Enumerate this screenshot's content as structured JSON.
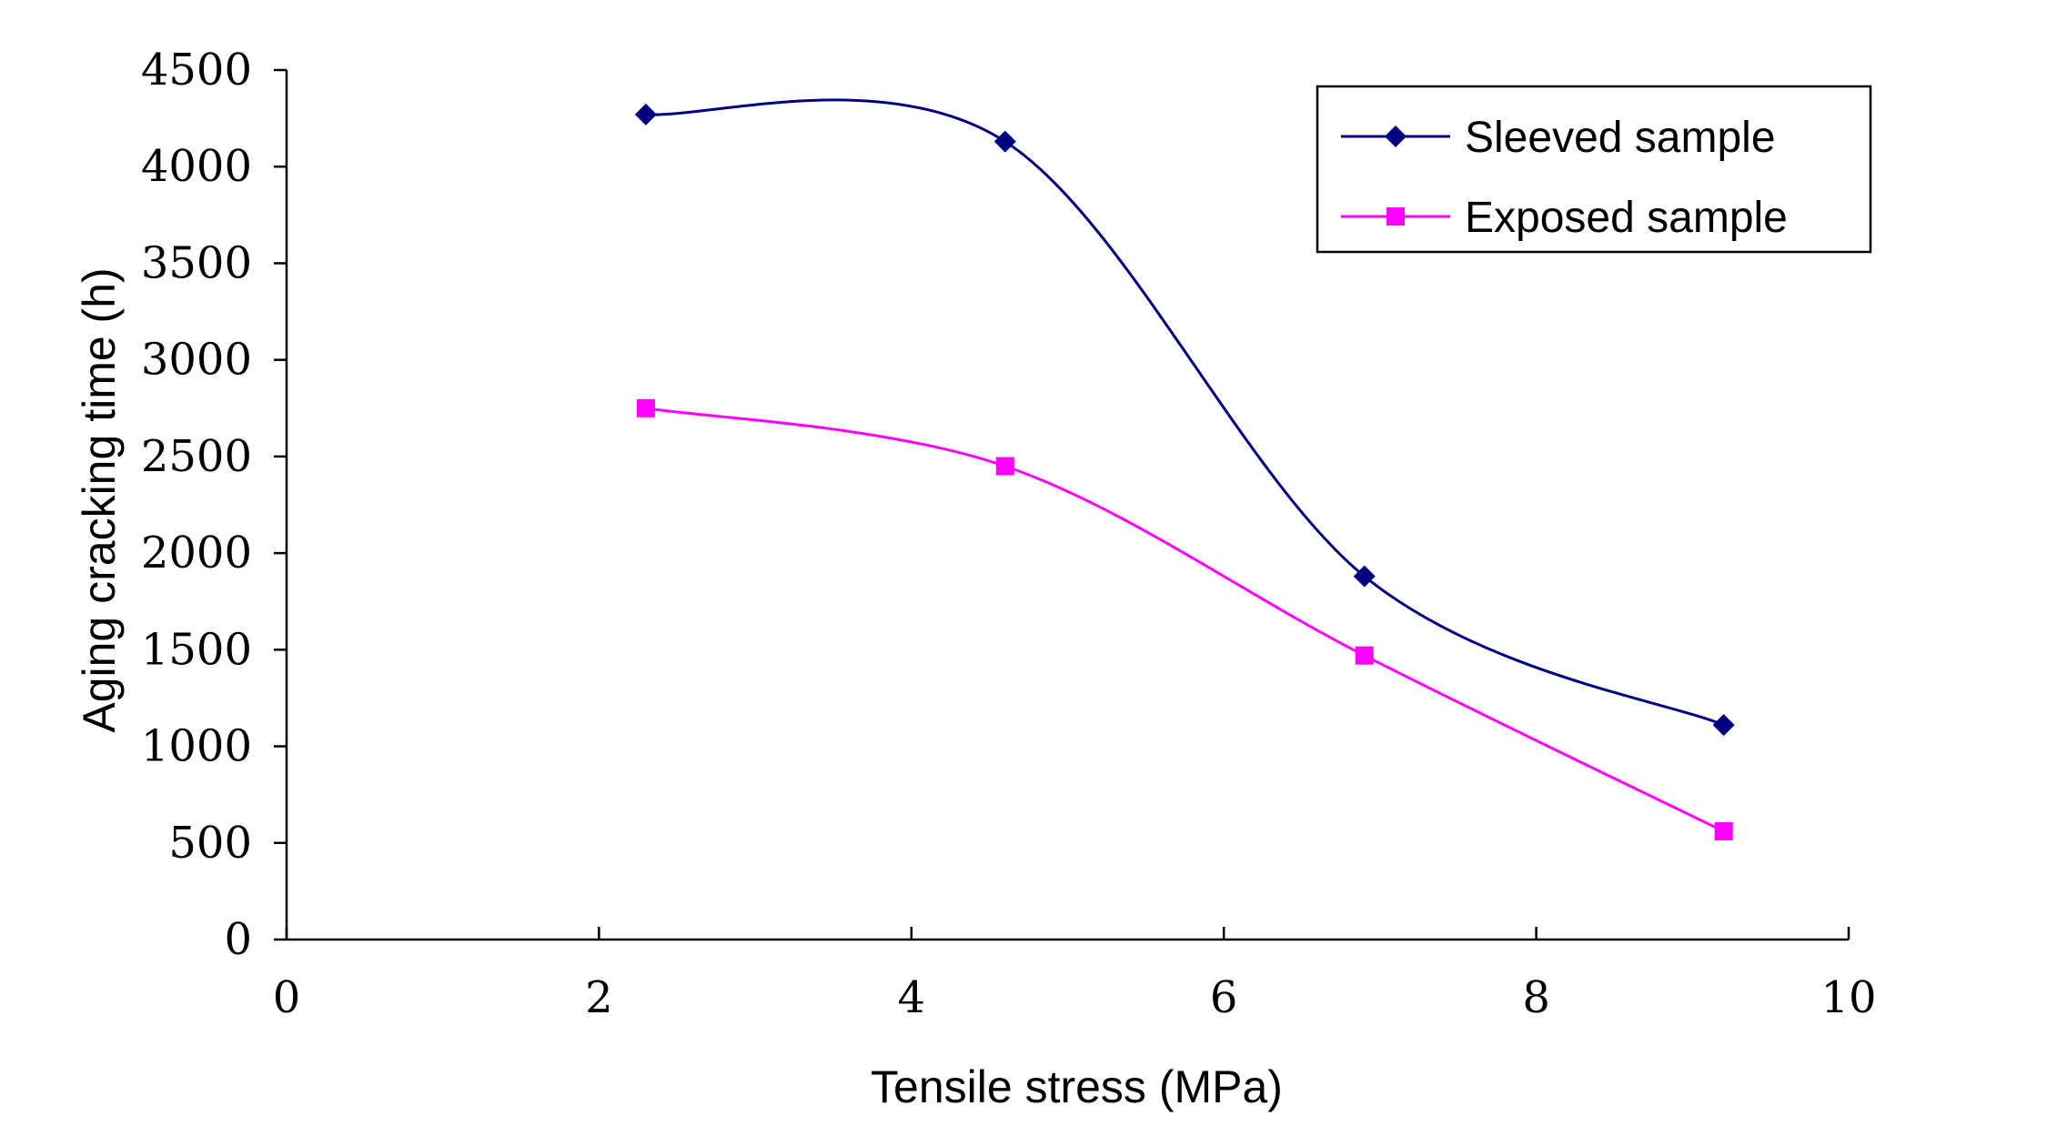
{
  "chart_data": {
    "type": "line",
    "title": "",
    "xlabel": "Tensile stress (MPa)",
    "ylabel": "Aging cracking time (h)",
    "xlim": [
      0,
      10
    ],
    "ylim": [
      0,
      4500
    ],
    "xticks": [
      0,
      2,
      4,
      6,
      8,
      10
    ],
    "yticks": [
      0,
      500,
      1000,
      1500,
      2000,
      2500,
      3000,
      3500,
      4000,
      4500
    ],
    "grid": false,
    "legend_position": "top-right",
    "series": [
      {
        "name": "Sleeved sample",
        "color": "#000080",
        "marker": "diamond",
        "x": [
          2.3,
          4.6,
          6.9,
          9.2
        ],
        "y": [
          4270,
          4130,
          1880,
          1110
        ]
      },
      {
        "name": "Exposed sample",
        "color": "#FF00FF",
        "marker": "square",
        "x": [
          2.3,
          4.6,
          6.9,
          9.2
        ],
        "y": [
          2750,
          2450,
          1470,
          560
        ]
      }
    ]
  }
}
